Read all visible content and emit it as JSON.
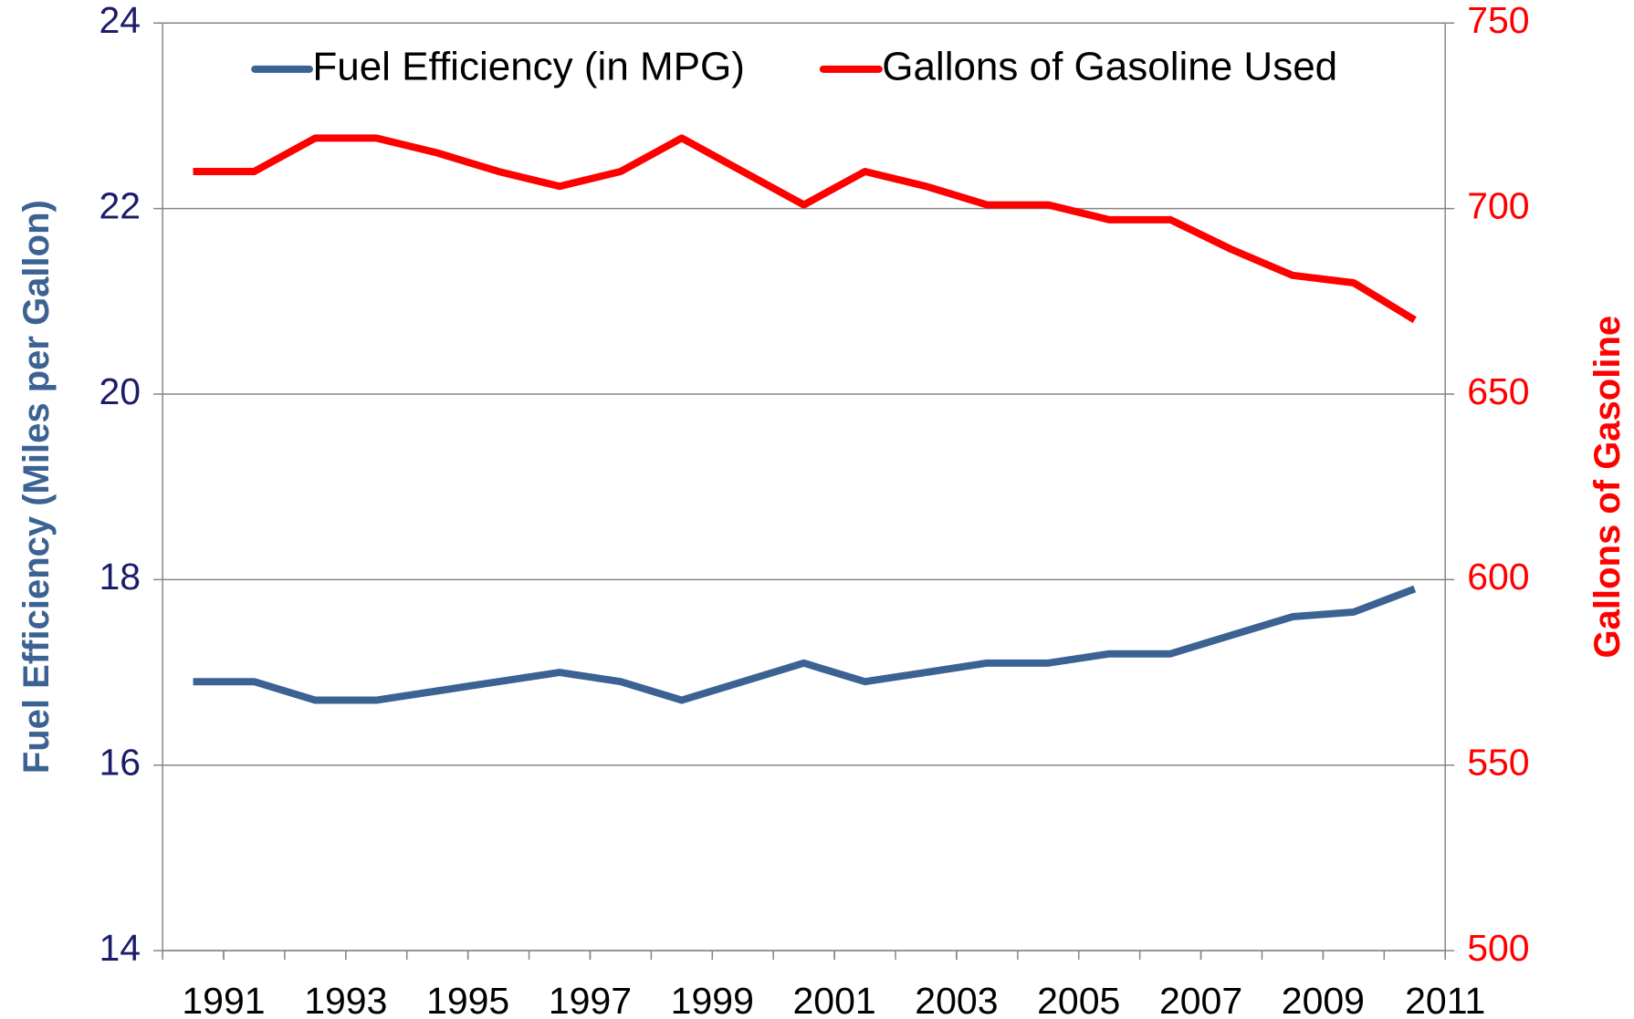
{
  "chart_data": {
    "type": "line",
    "x": [
      1990.5,
      1991.5,
      1992.5,
      1993.5,
      1994.5,
      1995.5,
      1996.5,
      1997.5,
      1998.5,
      1999.5,
      2000.5,
      2001.5,
      2002.5,
      2003.5,
      2004.5,
      2005.5,
      2006.5,
      2007.5,
      2008.5,
      2009.5,
      2010.5
    ],
    "series": [
      {
        "name": "Fuel Efficiency (in MPG)",
        "color": "#3b6292",
        "axis": "y",
        "values": [
          16.9,
          16.9,
          16.7,
          16.7,
          16.8,
          16.9,
          17.0,
          16.9,
          16.7,
          16.9,
          17.1,
          16.9,
          17.0,
          17.1,
          17.1,
          17.2,
          17.2,
          17.4,
          17.6,
          17.65,
          17.9
        ]
      },
      {
        "name": "Gallons of Gasoline Used",
        "color": "#ff0000",
        "axis": "y2",
        "values": [
          710,
          710,
          719,
          719,
          715,
          710,
          706,
          710,
          719,
          710,
          701,
          710,
          706,
          701,
          701,
          697,
          697,
          689,
          682,
          680,
          670
        ]
      }
    ],
    "y_label": "Fuel Efficiency (Miles per Gallon)",
    "y2_label": "Gallons of Gasoline",
    "xlim": [
      1990,
      2011
    ],
    "xticks": [
      1991,
      1993,
      1995,
      1997,
      1999,
      2001,
      2003,
      2005,
      2007,
      2009,
      2011
    ],
    "xminor_step": 1,
    "ylim": [
      14,
      24
    ],
    "yticks": [
      14,
      16,
      18,
      20,
      22,
      24
    ],
    "y2lim": [
      500,
      750
    ],
    "y2ticks": [
      500,
      550,
      600,
      650,
      700,
      750
    ],
    "grid": true,
    "legend": "top"
  }
}
